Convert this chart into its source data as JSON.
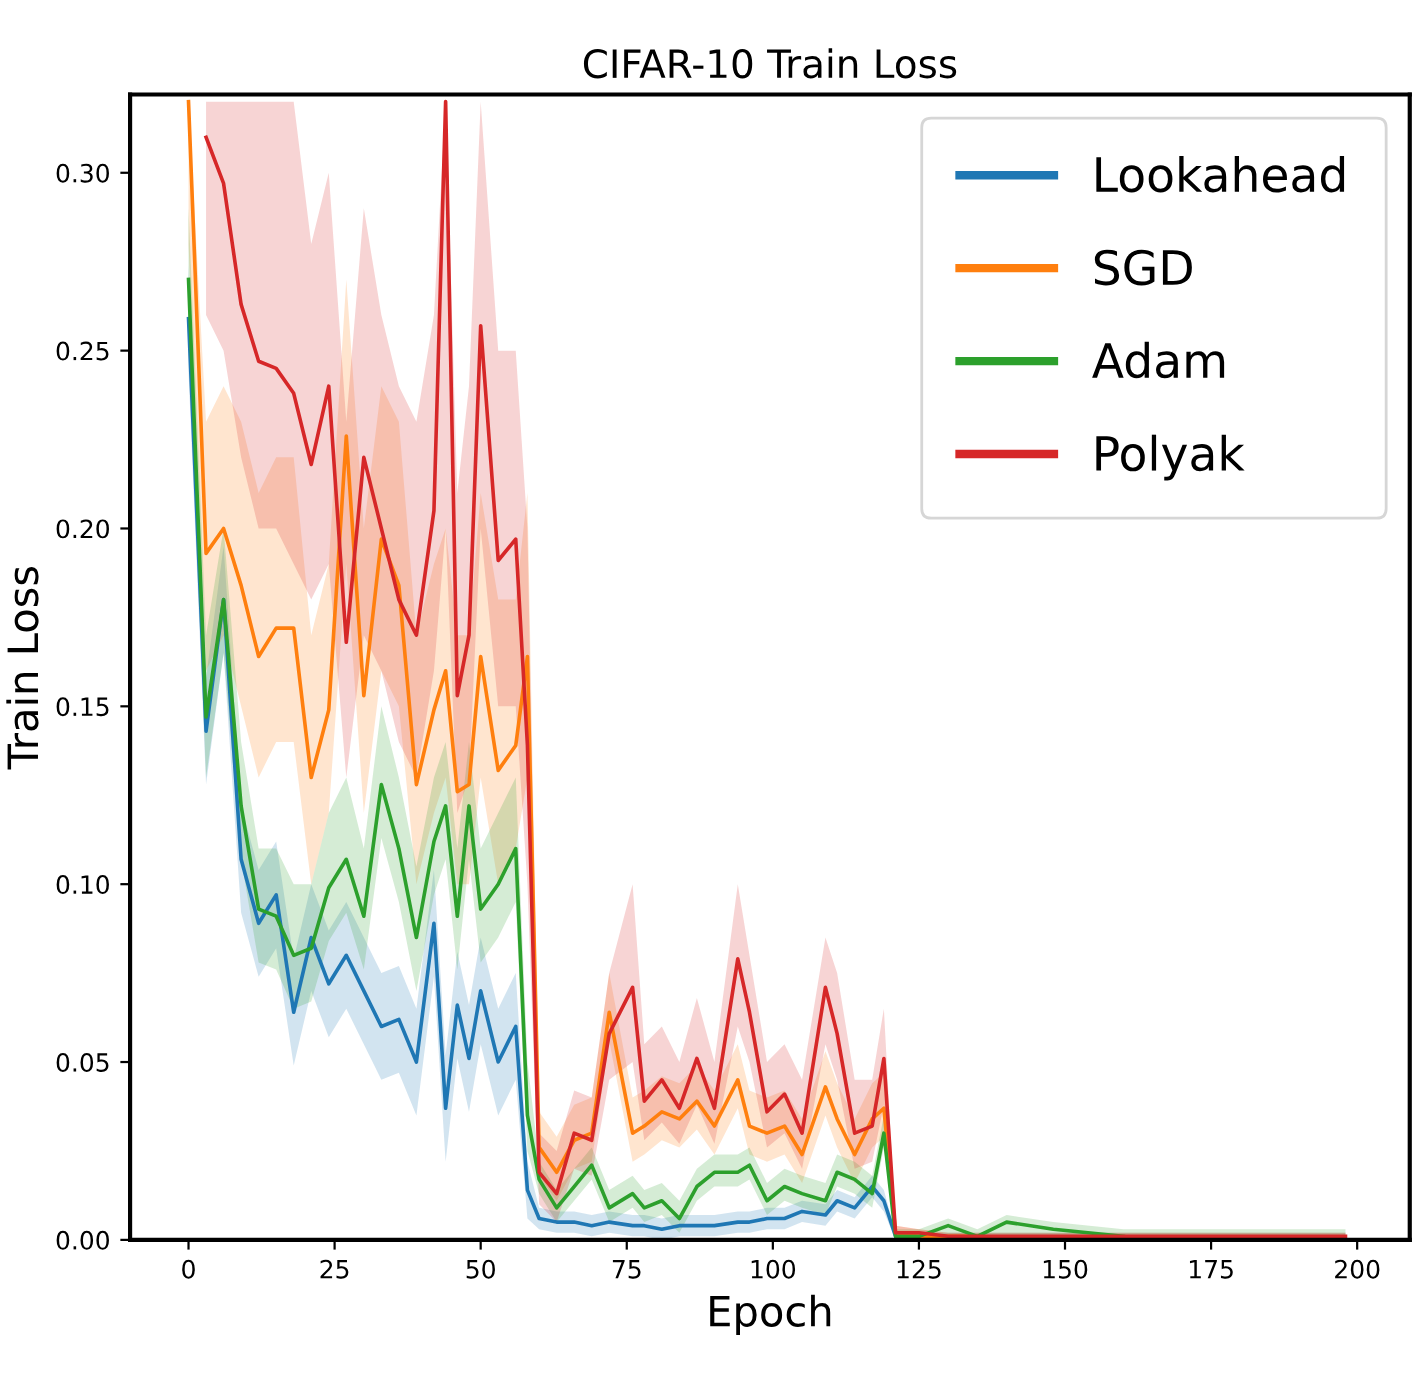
{
  "chart_data": {
    "type": "line",
    "title": "CIFAR-10 Train Loss",
    "xlabel": "Epoch",
    "ylabel": "Train Loss",
    "x": [
      0,
      3,
      6,
      9,
      12,
      15,
      18,
      21,
      24,
      27,
      30,
      33,
      36,
      39,
      42,
      44,
      46,
      48,
      50,
      53,
      56,
      58,
      60,
      63,
      66,
      69,
      72,
      76,
      78,
      81,
      84,
      87,
      90,
      94,
      96,
      99,
      102,
      105,
      109,
      111,
      114,
      117,
      119,
      121,
      125,
      130,
      135,
      140,
      148,
      160,
      170,
      180,
      190,
      198
    ],
    "series": [
      {
        "name": "Lookahead",
        "color": "#1f77b4",
        "values": [
          0.259,
          0.143,
          0.18,
          0.107,
          0.089,
          0.097,
          0.064,
          0.085,
          0.072,
          0.08,
          0.07,
          0.06,
          0.062,
          0.05,
          0.089,
          0.037,
          0.066,
          0.051,
          0.07,
          0.05,
          0.06,
          0.014,
          0.006,
          0.005,
          0.005,
          0.004,
          0.005,
          0.004,
          0.004,
          0.003,
          0.004,
          0.004,
          0.004,
          0.005,
          0.005,
          0.006,
          0.006,
          0.008,
          0.007,
          0.011,
          0.009,
          0.015,
          0.011,
          0.001,
          null,
          null,
          null,
          null,
          null,
          null,
          null,
          null,
          null,
          null
        ],
        "lower": [
          0.244,
          0.128,
          0.165,
          0.092,
          0.074,
          0.082,
          0.049,
          0.07,
          0.057,
          0.065,
          0.055,
          0.045,
          0.047,
          0.035,
          0.074,
          0.022,
          0.051,
          0.036,
          0.055,
          0.035,
          0.045,
          0.006,
          0.003,
          0.002,
          0.002,
          0.001,
          0.002,
          0.001,
          0.001,
          0.0,
          0.001,
          0.001,
          0.001,
          0.002,
          0.002,
          0.003,
          0.003,
          0.005,
          0.004,
          0.008,
          0.006,
          0.012,
          0.008,
          0.0,
          0.0,
          0.0,
          0.0,
          0.0,
          0.0,
          0.0,
          0.0,
          0.0,
          0.0,
          0.0
        ],
        "upper": [
          0.274,
          0.158,
          0.195,
          0.122,
          0.104,
          0.112,
          0.079,
          0.1,
          0.087,
          0.095,
          0.085,
          0.075,
          0.077,
          0.065,
          0.104,
          0.052,
          0.081,
          0.066,
          0.085,
          0.065,
          0.075,
          0.022,
          0.009,
          0.008,
          0.008,
          0.007,
          0.008,
          0.007,
          0.007,
          0.006,
          0.007,
          0.007,
          0.007,
          0.008,
          0.008,
          0.009,
          0.009,
          0.011,
          0.01,
          0.014,
          0.012,
          0.018,
          0.014,
          0.002,
          0.002,
          0.002,
          0.002,
          0.002,
          0.002,
          0.002,
          0.002,
          0.002,
          0.002,
          0.002
        ]
      },
      {
        "name": "SGD",
        "color": "#ff7f0e",
        "values": [
          0.32,
          0.193,
          0.2,
          0.184,
          0.164,
          0.172,
          0.172,
          0.13,
          0.149,
          0.226,
          0.153,
          0.197,
          0.184,
          0.128,
          0.149,
          0.16,
          0.126,
          0.128,
          0.164,
          0.132,
          0.139,
          0.164,
          0.026,
          0.019,
          0.028,
          0.03,
          0.064,
          0.03,
          0.032,
          0.036,
          0.034,
          0.039,
          0.032,
          0.045,
          0.032,
          0.03,
          0.032,
          0.024,
          0.043,
          0.034,
          0.024,
          0.034,
          0.037,
          0.002,
          0.001,
          0.001,
          0.001,
          null,
          null,
          null,
          null,
          null,
          null,
          null
        ],
        "lower": [
          0.28,
          0.16,
          0.17,
          0.15,
          0.13,
          0.14,
          0.14,
          0.1,
          0.12,
          0.19,
          0.12,
          0.16,
          0.15,
          0.1,
          0.12,
          0.13,
          0.1,
          0.1,
          0.13,
          0.1,
          0.11,
          0.13,
          0.018,
          0.011,
          0.02,
          0.022,
          0.056,
          0.022,
          0.024,
          0.028,
          0.026,
          0.031,
          0.024,
          0.037,
          0.024,
          0.022,
          0.024,
          0.016,
          0.035,
          0.026,
          0.016,
          0.026,
          0.029,
          0.0,
          0.0,
          0.0,
          0.0,
          0.0,
          0.0,
          0.0,
          0.0,
          0.0,
          0.0,
          0.0
        ],
        "upper": [
          0.32,
          0.23,
          0.24,
          0.23,
          0.21,
          0.22,
          0.22,
          0.17,
          0.19,
          0.27,
          0.2,
          0.24,
          0.23,
          0.17,
          0.19,
          0.2,
          0.17,
          0.17,
          0.21,
          0.18,
          0.18,
          0.21,
          0.036,
          0.029,
          0.038,
          0.04,
          0.075,
          0.04,
          0.042,
          0.046,
          0.044,
          0.049,
          0.042,
          0.055,
          0.042,
          0.04,
          0.042,
          0.034,
          0.053,
          0.044,
          0.034,
          0.044,
          0.047,
          0.004,
          0.003,
          0.002,
          0.002,
          0.002,
          0.002,
          0.002,
          0.002,
          0.002,
          0.002,
          0.002
        ]
      },
      {
        "name": "Adam",
        "color": "#2ca02c",
        "values": [
          0.27,
          0.147,
          0.18,
          0.122,
          0.093,
          0.091,
          0.08,
          0.082,
          0.099,
          0.107,
          0.091,
          0.128,
          0.11,
          0.085,
          0.112,
          0.122,
          0.091,
          0.122,
          0.093,
          0.1,
          0.11,
          0.035,
          0.017,
          0.009,
          0.015,
          0.021,
          0.009,
          0.013,
          0.009,
          0.011,
          0.006,
          0.015,
          0.019,
          0.019,
          0.021,
          0.011,
          0.015,
          0.013,
          0.011,
          0.019,
          0.017,
          0.013,
          0.03,
          0.001,
          0.001,
          0.004,
          0.001,
          0.005,
          0.003,
          0.001,
          null,
          null,
          null,
          null
        ],
        "lower": [
          0.255,
          0.13,
          0.165,
          0.107,
          0.078,
          0.076,
          0.065,
          0.067,
          0.084,
          0.092,
          0.076,
          0.113,
          0.095,
          0.07,
          0.097,
          0.107,
          0.076,
          0.107,
          0.078,
          0.085,
          0.095,
          0.025,
          0.013,
          0.005,
          0.011,
          0.017,
          0.005,
          0.009,
          0.005,
          0.007,
          0.002,
          0.011,
          0.015,
          0.015,
          0.017,
          0.007,
          0.011,
          0.009,
          0.007,
          0.015,
          0.013,
          0.009,
          0.026,
          0.0,
          0.0,
          0.0,
          0.0,
          0.0,
          0.0,
          0.0,
          0.0,
          0.0,
          0.0,
          0.0
        ],
        "upper": [
          0.29,
          0.17,
          0.2,
          0.14,
          0.11,
          0.11,
          0.1,
          0.1,
          0.12,
          0.13,
          0.11,
          0.15,
          0.13,
          0.105,
          0.13,
          0.14,
          0.11,
          0.14,
          0.11,
          0.12,
          0.13,
          0.05,
          0.022,
          0.014,
          0.02,
          0.026,
          0.014,
          0.018,
          0.014,
          0.016,
          0.011,
          0.02,
          0.024,
          0.024,
          0.026,
          0.016,
          0.02,
          0.018,
          0.016,
          0.024,
          0.022,
          0.018,
          0.035,
          0.003,
          0.003,
          0.006,
          0.003,
          0.007,
          0.005,
          0.003,
          0.003,
          0.003,
          0.003,
          0.003
        ]
      },
      {
        "name": "Polyak",
        "color": "#d62728",
        "values": [
          null,
          0.31,
          0.297,
          0.263,
          0.247,
          0.245,
          0.238,
          0.218,
          0.24,
          0.168,
          0.22,
          0.2,
          0.18,
          0.17,
          0.205,
          0.32,
          0.153,
          0.17,
          0.257,
          0.191,
          0.197,
          0.139,
          0.019,
          0.013,
          0.03,
          0.028,
          0.058,
          0.071,
          0.039,
          0.045,
          0.037,
          0.051,
          0.037,
          0.079,
          0.064,
          0.036,
          0.041,
          0.03,
          0.071,
          0.058,
          0.03,
          0.032,
          0.051,
          0.002,
          0.002,
          0.001,
          0.001,
          0.001,
          0.001,
          0.001,
          0.001,
          0.001,
          0.001,
          0.001
        ],
        "lower": [
          null,
          0.26,
          0.25,
          0.22,
          0.2,
          0.2,
          0.19,
          0.18,
          0.19,
          0.13,
          0.17,
          0.16,
          0.14,
          0.13,
          0.16,
          0.2,
          0.12,
          0.13,
          0.2,
          0.15,
          0.15,
          0.1,
          0.01,
          0.005,
          0.02,
          0.018,
          0.045,
          0.05,
          0.028,
          0.033,
          0.027,
          0.038,
          0.027,
          0.06,
          0.05,
          0.026,
          0.03,
          0.02,
          0.055,
          0.045,
          0.02,
          0.022,
          0.038,
          0.0,
          0.0,
          0.0,
          0.0,
          0.0,
          0.0,
          0.0,
          0.0,
          0.0,
          0.0,
          0.0
        ],
        "upper": [
          null,
          0.32,
          0.32,
          0.32,
          0.32,
          0.32,
          0.32,
          0.28,
          0.3,
          0.23,
          0.29,
          0.26,
          0.24,
          0.23,
          0.26,
          0.32,
          0.21,
          0.24,
          0.32,
          0.25,
          0.25,
          0.2,
          0.03,
          0.025,
          0.042,
          0.04,
          0.075,
          0.1,
          0.055,
          0.06,
          0.05,
          0.068,
          0.05,
          0.1,
          0.08,
          0.05,
          0.055,
          0.045,
          0.085,
          0.075,
          0.045,
          0.045,
          0.065,
          0.004,
          0.003,
          0.002,
          0.002,
          0.002,
          0.002,
          0.002,
          0.002,
          0.002,
          0.002,
          0.002
        ]
      }
    ],
    "xlim": [
      -10,
      209
    ],
    "ylim": [
      0,
      0.322
    ],
    "xticks": [
      0,
      25,
      50,
      75,
      100,
      125,
      150,
      175,
      200
    ],
    "yticks": [
      {
        "value": 0,
        "label": "0.00"
      },
      {
        "value": 0.05,
        "label": "0.05"
      },
      {
        "value": 0.1,
        "label": "0.10"
      },
      {
        "value": 0.15,
        "label": "0.15"
      },
      {
        "value": 0.2,
        "label": "0.20"
      },
      {
        "value": 0.25,
        "label": "0.25"
      },
      {
        "value": 0.3,
        "label": "0.30"
      }
    ],
    "legend": "top right",
    "line_style": "solid"
  }
}
